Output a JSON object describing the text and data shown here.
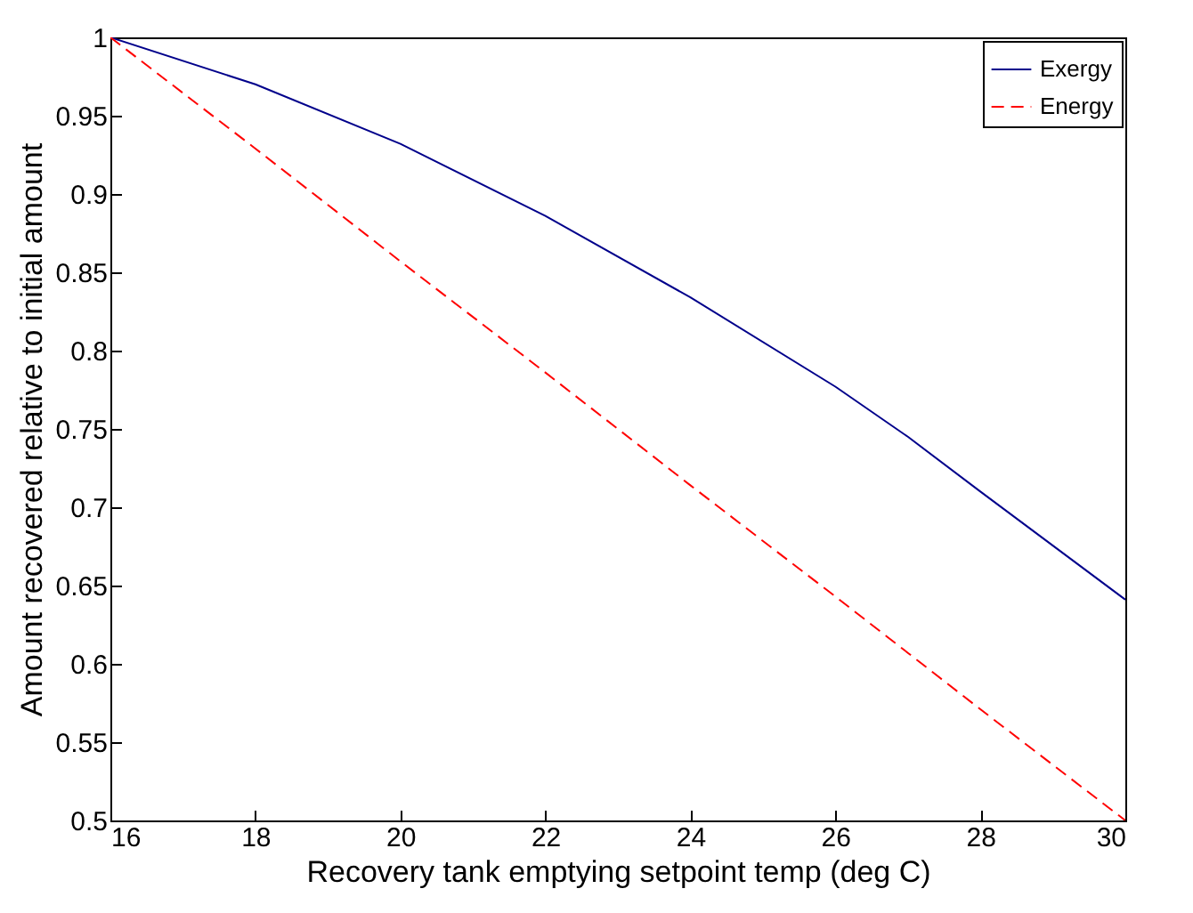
{
  "chart_data": {
    "type": "line",
    "xlabel": "Recovery tank emptying setpoint temp (deg C)",
    "ylabel": "Amount recovered relative to initial amount",
    "x": [
      16,
      18,
      20,
      22,
      24,
      26,
      27,
      28,
      30
    ],
    "series": [
      {
        "name": "Exergy",
        "color": "#00008b",
        "line_style": "solid",
        "values": [
          1,
          0.97,
          0.932,
          0.886,
          0.834,
          0.777,
          0.745,
          0.71,
          0.641
        ]
      },
      {
        "name": "Energy",
        "color": "#ff0000",
        "line_style": "dashed",
        "values": [
          1,
          0.929,
          0.857,
          0.786,
          0.714,
          0.643,
          0.607,
          0.571,
          0.5
        ]
      }
    ],
    "xlim": [
      16,
      30
    ],
    "xticks": [
      16,
      18,
      20,
      22,
      24,
      26,
      28,
      30
    ],
    "ylim": [
      0.5,
      1
    ],
    "yticks": [
      0.5,
      0.55,
      0.6,
      0.65,
      0.7,
      0.75,
      0.8,
      0.85,
      0.9,
      0.95,
      1
    ],
    "grid": false,
    "legend": "top right",
    "marker": "none"
  }
}
